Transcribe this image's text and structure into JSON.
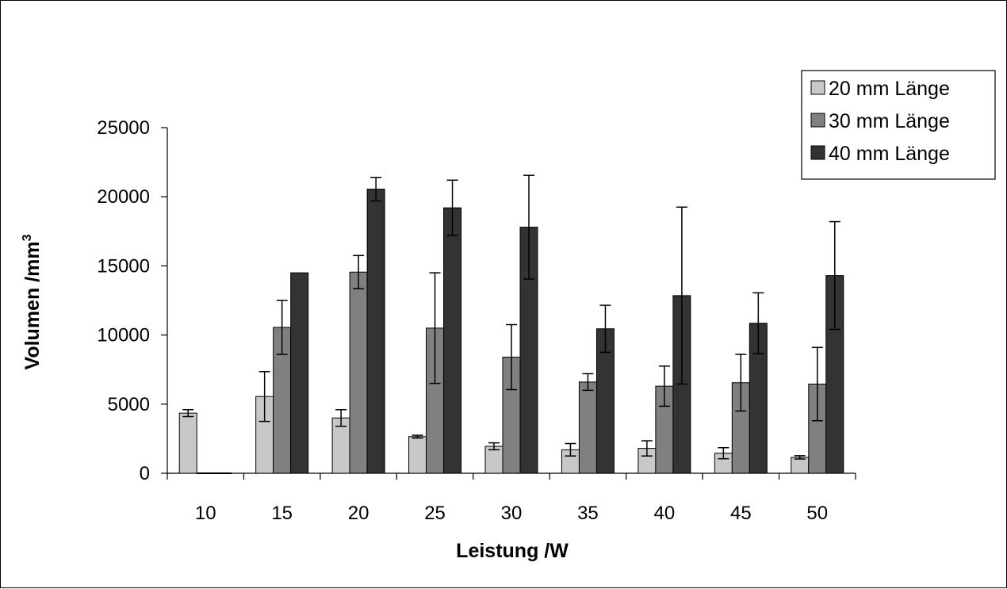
{
  "chart_data": {
    "type": "bar",
    "title": "",
    "xlabel": "Leistung /W",
    "ylabel": "Volumen /mm",
    "ylabel_superscript": "3",
    "ylim": [
      0,
      25000
    ],
    "yticks": [
      0,
      5000,
      10000,
      15000,
      20000,
      25000
    ],
    "ytick_labels": [
      "0",
      "5000",
      "10000",
      "15000",
      "20000",
      "25000"
    ],
    "categories": [
      "10",
      "15",
      "20",
      "25",
      "30",
      "35",
      "40",
      "45",
      "50"
    ],
    "grid": false,
    "legend_position": "top-right",
    "series": [
      {
        "name": "20 mm Länge",
        "color": "#c8c8c8",
        "values": [
          4350,
          5550,
          4000,
          2650,
          1950,
          1700,
          1800,
          1450,
          1150
        ],
        "error": [
          250,
          1800,
          600,
          100,
          250,
          450,
          550,
          400,
          120
        ]
      },
      {
        "name": "30 mm Länge",
        "color": "#808080",
        "values": [
          0,
          10550,
          14550,
          10500,
          8400,
          6600,
          6300,
          6550,
          6450
        ],
        "error": [
          0,
          1950,
          1200,
          4000,
          2350,
          600,
          1450,
          2050,
          2650
        ]
      },
      {
        "name": "40 mm Länge",
        "color": "#333333",
        "values": [
          0,
          14500,
          20550,
          19200,
          17800,
          10450,
          12850,
          10850,
          14300
        ],
        "error": [
          0,
          0,
          850,
          2000,
          3750,
          1700,
          6400,
          2200,
          3900
        ]
      }
    ]
  }
}
